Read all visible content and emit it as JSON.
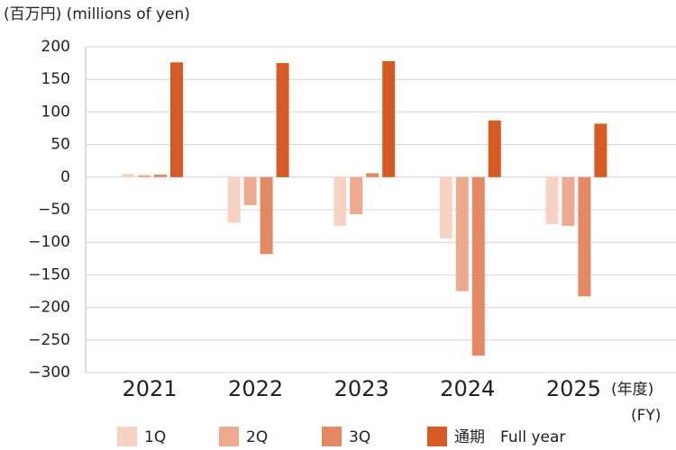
{
  "chart_data": {
    "type": "bar",
    "ylabel": "(百万円) (millions of yen)",
    "xlabel": "(年度)",
    "xlabel_en": "(FY)",
    "categories": [
      "2021",
      "2022",
      "2023",
      "2024",
      "2025"
    ],
    "series": [
      {
        "name": "1Q",
        "color": "#f6d3c4",
        "values": [
          5,
          -70,
          -75,
          -94,
          -72
        ]
      },
      {
        "name": "2Q",
        "color": "#eeaa8f",
        "values": [
          3,
          -43,
          -57,
          -175,
          -75
        ]
      },
      {
        "name": "3Q",
        "color": "#e38a63",
        "values": [
          4,
          -118,
          6,
          -274,
          -183
        ]
      },
      {
        "name": "通期　Full year",
        "color": "#d55a26",
        "values": [
          176,
          175,
          178,
          87,
          82
        ]
      }
    ],
    "ylim": [
      -300,
      200
    ],
    "yticks": [
      {
        "value": -300,
        "label": "−300"
      },
      {
        "value": -250,
        "label": "−250"
      },
      {
        "value": -200,
        "label": "−200"
      },
      {
        "value": -150,
        "label": "−150"
      },
      {
        "value": -100,
        "label": "−100"
      },
      {
        "value": -50,
        "label": "−50"
      },
      0,
      50,
      100,
      150,
      200
    ],
    "grid": true,
    "legend": "bottom"
  }
}
